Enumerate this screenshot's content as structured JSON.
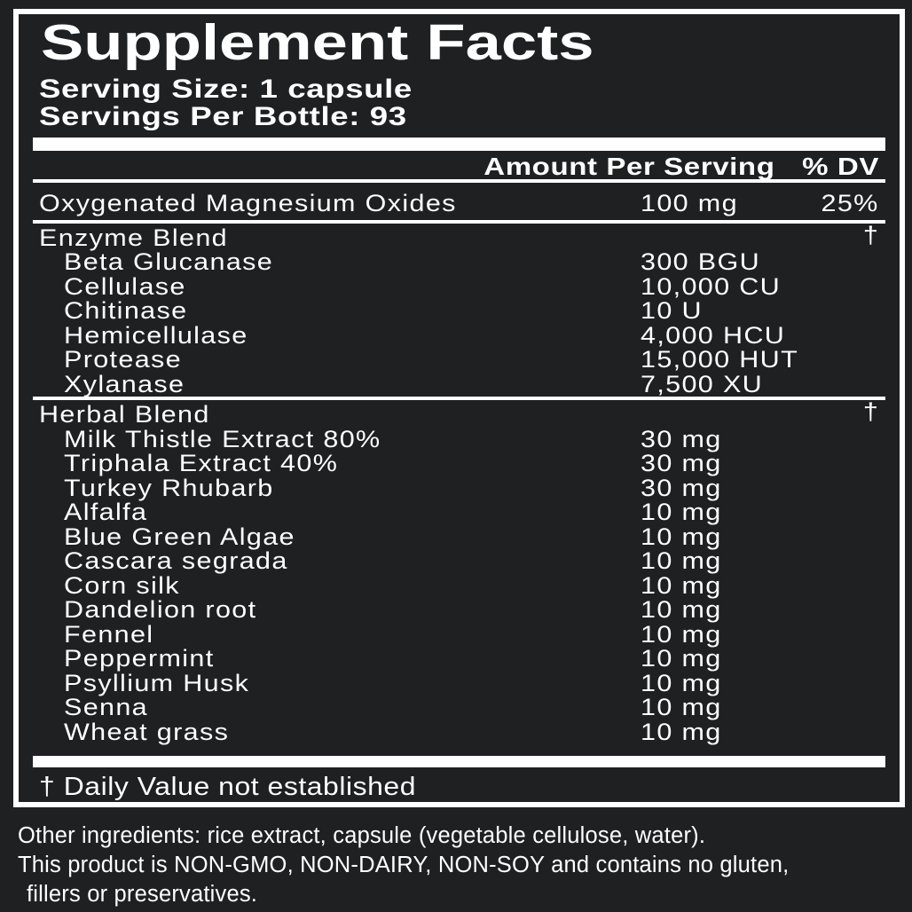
{
  "colors": {
    "background": "#1e2021",
    "text": "#ffffff",
    "rule": "#ffffff"
  },
  "facts": {
    "title": "Supplement Facts",
    "serving_size": "Serving Size: 1 capsule",
    "servings_per_bottle": "Servings Per Bottle: 93",
    "col_amount": "Amount Per Serving",
    "col_dv": "% DV",
    "magnesium": {
      "name": "Oxygenated Magnesium Oxides",
      "amount": "100 mg",
      "dv": "25%"
    },
    "enzyme_blend": {
      "name": "Enzyme Blend",
      "dv": "†",
      "items": [
        {
          "name": "Beta Glucanase",
          "amount": "300 BGU"
        },
        {
          "name": "Cellulase",
          "amount": "10,000 CU"
        },
        {
          "name": "Chitinase",
          "amount": "10 U"
        },
        {
          "name": "Hemicellulase",
          "amount": "4,000 HCU"
        },
        {
          "name": "Protease",
          "amount": "15,000 HUT"
        },
        {
          "name": "Xylanase",
          "amount": "7,500 XU"
        }
      ]
    },
    "herbal_blend": {
      "name": "Herbal Blend",
      "dv": "†",
      "items": [
        {
          "name": "Milk Thistle Extract 80%",
          "amount": "30 mg"
        },
        {
          "name": "Triphala Extract 40%",
          "amount": "30 mg"
        },
        {
          "name": "Turkey Rhubarb",
          "amount": "30 mg"
        },
        {
          "name": "Alfalfa",
          "amount": "10 mg"
        },
        {
          "name": "Blue Green Algae",
          "amount": "10 mg"
        },
        {
          "name": "Cascara segrada",
          "amount": "10 mg"
        },
        {
          "name": "Corn silk",
          "amount": "10 mg"
        },
        {
          "name": "Dandelion root",
          "amount": "10 mg"
        },
        {
          "name": "Fennel",
          "amount": "10 mg"
        },
        {
          "name": "Peppermint",
          "amount": "10 mg"
        },
        {
          "name": "Psyllium Husk",
          "amount": "10 mg"
        },
        {
          "name": "Senna",
          "amount": "10 mg"
        },
        {
          "name": "Wheat grass",
          "amount": "10 mg"
        }
      ]
    },
    "footnote": "† Daily Value not established"
  },
  "other_info": {
    "line1": "Other ingredients: rice extract, capsule (vegetable cellulose, water).",
    "line2": "This product is NON-GMO, NON-DAIRY, NON-SOY and contains no gluten,",
    "line3": "fillers or preservatives."
  }
}
